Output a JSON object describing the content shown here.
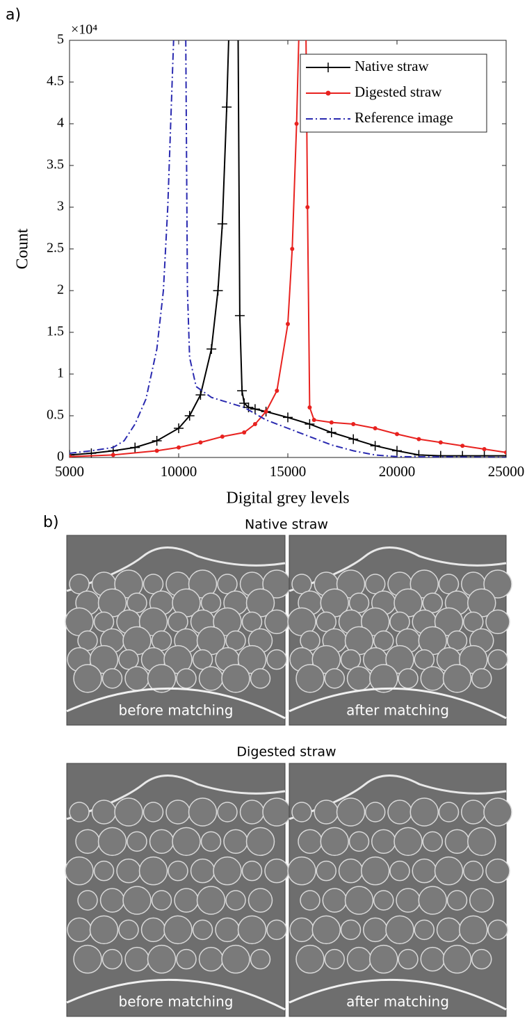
{
  "chart_data": {
    "type": "line",
    "xlabel": "Digital grey levels",
    "ylabel": "Count",
    "y_multiplier": "×10⁴",
    "xlim": [
      5000,
      25000
    ],
    "xticks": [
      5000,
      10000,
      15000,
      20000,
      25000
    ],
    "ylim": [
      0,
      5
    ],
    "yticks": [
      0,
      0.5,
      1,
      1.5,
      2,
      2.5,
      3,
      3.5,
      4,
      4.5,
      5
    ],
    "legend": "upper right",
    "series": [
      {
        "name": "Native straw",
        "color": "#000000",
        "marker": "plus",
        "x": [
          5000,
          6000,
          7000,
          8000,
          9000,
          10000,
          10500,
          11000,
          11500,
          11800,
          12000,
          12200,
          12400,
          12700,
          12800,
          12900,
          13000,
          13200,
          13500,
          14000,
          15000,
          16000,
          17000,
          18000,
          19000,
          20000,
          21000,
          22000,
          23000,
          24000,
          25000
        ],
        "values": [
          0.03,
          0.05,
          0.08,
          0.12,
          0.2,
          0.35,
          0.5,
          0.75,
          1.3,
          2,
          2.8,
          4.2,
          6,
          6,
          1.7,
          0.8,
          0.65,
          0.6,
          0.58,
          0.55,
          0.48,
          0.4,
          0.3,
          0.22,
          0.14,
          0.08,
          0.03,
          0.02,
          0.02,
          0.02,
          0.02
        ]
      },
      {
        "name": "Digested straw",
        "color": "#e8221f",
        "marker": "dot",
        "x": [
          5000,
          7000,
          9000,
          10000,
          11000,
          12000,
          13000,
          13500,
          14000,
          14500,
          15000,
          15200,
          15400,
          15600,
          15800,
          15900,
          16000,
          16200,
          17000,
          18000,
          19000,
          20000,
          21000,
          22000,
          23000,
          24000,
          25000
        ],
        "values": [
          0.01,
          0.03,
          0.08,
          0.12,
          0.18,
          0.25,
          0.3,
          0.4,
          0.55,
          0.8,
          1.6,
          2.5,
          4,
          6,
          6,
          3,
          0.6,
          0.45,
          0.42,
          0.4,
          0.35,
          0.28,
          0.22,
          0.18,
          0.14,
          0.1,
          0.06
        ]
      },
      {
        "name": "Reference image",
        "color": "#2a2ab0",
        "marker": "none",
        "x": [
          5000,
          6000,
          7000,
          7500,
          8000,
          8500,
          9000,
          9300,
          9500,
          9700,
          9900,
          10300,
          10400,
          10500,
          10800,
          11500,
          12000,
          13000,
          14000,
          15000,
          16000,
          17000,
          18000,
          19000,
          20000,
          25000
        ],
        "values": [
          0.05,
          0.08,
          0.12,
          0.2,
          0.4,
          0.7,
          1.3,
          2,
          3,
          4.5,
          6,
          6,
          2,
          1.2,
          0.85,
          0.72,
          0.68,
          0.6,
          0.45,
          0.35,
          0.25,
          0.15,
          0.08,
          0.03,
          0.01,
          0
        ]
      }
    ]
  },
  "panel_labels": [
    "a)",
    "b)"
  ],
  "image_sections": [
    {
      "title": "Native straw",
      "captions": [
        "before matching",
        "after matching"
      ]
    },
    {
      "title": "Digested straw",
      "captions": [
        "before matching",
        "after matching"
      ]
    }
  ]
}
